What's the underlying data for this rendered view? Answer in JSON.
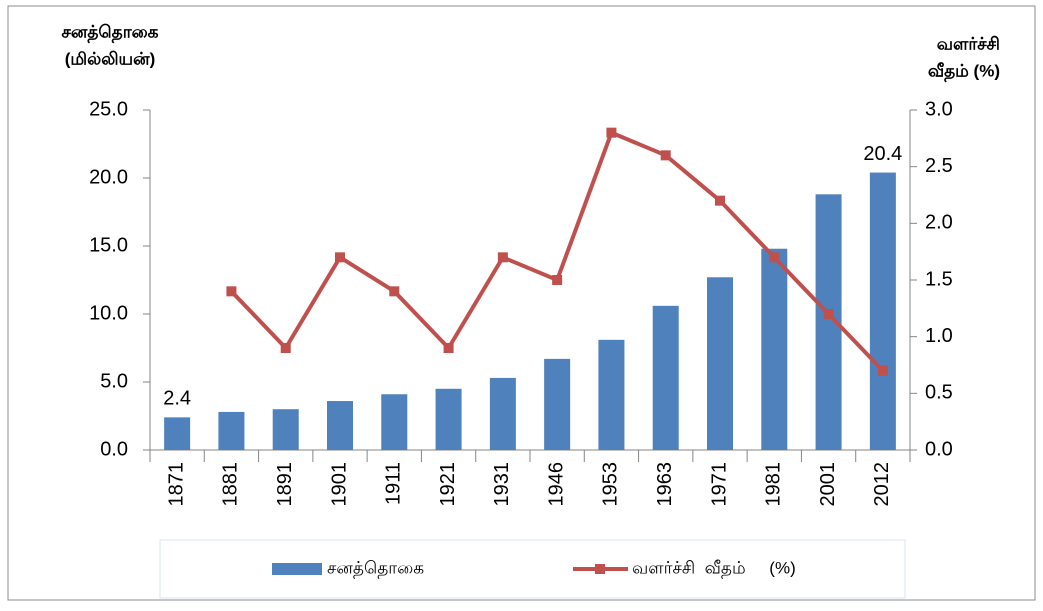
{
  "chart_data": {
    "type": "bar_line",
    "y_label": [
      "சனத்தொகை",
      "(மில்லியன்)"
    ],
    "y2_label": [
      "வளர்ச்சி",
      "வீதம்  (%)"
    ],
    "categories": [
      "1871",
      "1881",
      "1891",
      "1901",
      "1911",
      "1921",
      "1931",
      "1946",
      "1953",
      "1963",
      "1971",
      "1981",
      "2001",
      "2012"
    ],
    "series": [
      {
        "name": "சனத்தொகை",
        "color": "#4f81bd",
        "type": "bar",
        "values": [
          2.4,
          2.8,
          3.0,
          3.6,
          4.1,
          4.5,
          5.3,
          6.7,
          8.1,
          10.6,
          12.7,
          14.8,
          18.8,
          20.4
        ],
        "value_labels": [
          "2.4",
          null,
          null,
          null,
          null,
          null,
          null,
          null,
          null,
          null,
          null,
          null,
          null,
          "20.4"
        ]
      },
      {
        "name": "வளர்ச்சி  வீதம்     (%)",
        "color": "#c0504d",
        "type": "line",
        "axis": "y2",
        "values": [
          null,
          1.4,
          0.9,
          1.7,
          1.4,
          0.9,
          1.7,
          1.5,
          2.8,
          2.6,
          2.2,
          1.7,
          1.2,
          0.7
        ]
      }
    ],
    "ylim": [
      0,
      25
    ],
    "yticks": [
      {
        "value": 0,
        "label": "0.0"
      },
      {
        "value": 5,
        "label": "5.0"
      },
      {
        "value": 10,
        "label": "10.0"
      },
      {
        "value": 15,
        "label": "15.0"
      },
      {
        "value": 20,
        "label": "20.0"
      },
      {
        "value": 25,
        "label": "25.0"
      }
    ],
    "y2lim": [
      0,
      3
    ],
    "y2ticks": [
      {
        "value": 0,
        "label": "0.0"
      },
      {
        "value": 0.5,
        "label": "0.5"
      },
      {
        "value": 1,
        "label": "1.0"
      },
      {
        "value": 1.5,
        "label": "1.5"
      },
      {
        "value": 2,
        "label": "2.0"
      },
      {
        "value": 2.5,
        "label": "2.5"
      },
      {
        "value": 3,
        "label": "3.0"
      }
    ],
    "grid": false
  }
}
